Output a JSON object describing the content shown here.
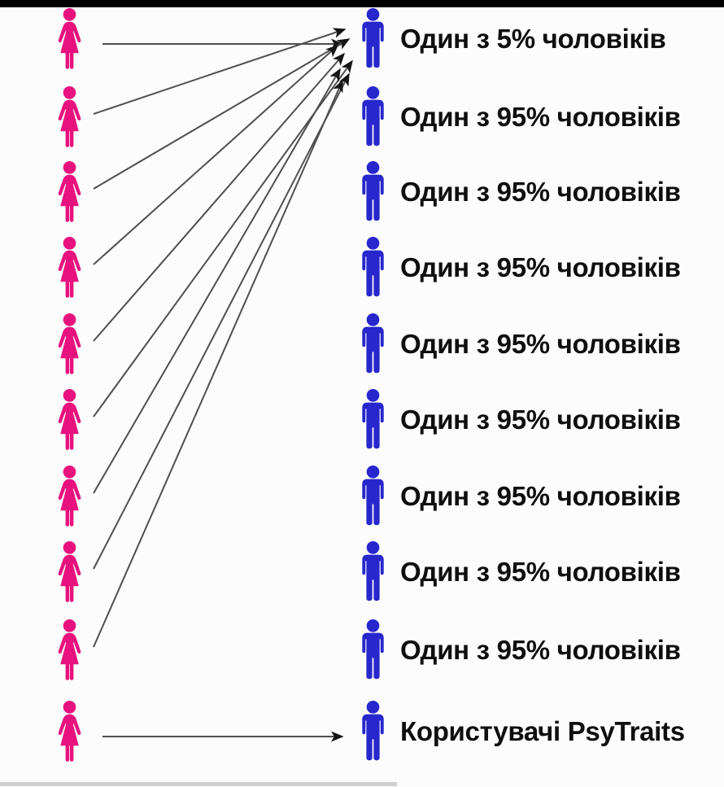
{
  "diagram": {
    "description": "dating-preference meme: many women point to one man",
    "left_column": {
      "figure": "woman",
      "count": 10
    },
    "right_rows": [
      {
        "figure": "man",
        "label": "Один з 5% чоловіків"
      },
      {
        "figure": "man",
        "label": "Один з 95% чоловіків"
      },
      {
        "figure": "man",
        "label": "Один з 95% чоловіків"
      },
      {
        "figure": "man",
        "label": "Один з 95% чоловіків"
      },
      {
        "figure": "man",
        "label": "Один з 95% чоловіків"
      },
      {
        "figure": "man",
        "label": "Один з 95% чоловіків"
      },
      {
        "figure": "man",
        "label": "Один з 95% чоловіків"
      },
      {
        "figure": "man",
        "label": "Один з 95% чоловіків"
      },
      {
        "figure": "man",
        "label": "Один з 95% чоловіків"
      },
      {
        "figure": "man",
        "label": "Користувачі PsyTraits"
      }
    ],
    "edges": [
      {
        "from": 1,
        "to": 1
      },
      {
        "from": 2,
        "to": 1
      },
      {
        "from": 3,
        "to": 1
      },
      {
        "from": 4,
        "to": 1
      },
      {
        "from": 5,
        "to": 1
      },
      {
        "from": 6,
        "to": 1
      },
      {
        "from": 7,
        "to": 1
      },
      {
        "from": 8,
        "to": 1
      },
      {
        "from": 9,
        "to": 1
      },
      {
        "from": 10,
        "to": 10
      }
    ],
    "colors": {
      "female": "#e8127e",
      "male": "#2727cd",
      "arrow_line": "#4f4f4f",
      "arrow_head": "#151515",
      "text": "#0f0f0f",
      "top_bar": "#000000",
      "background": "#fcfcfc"
    }
  }
}
